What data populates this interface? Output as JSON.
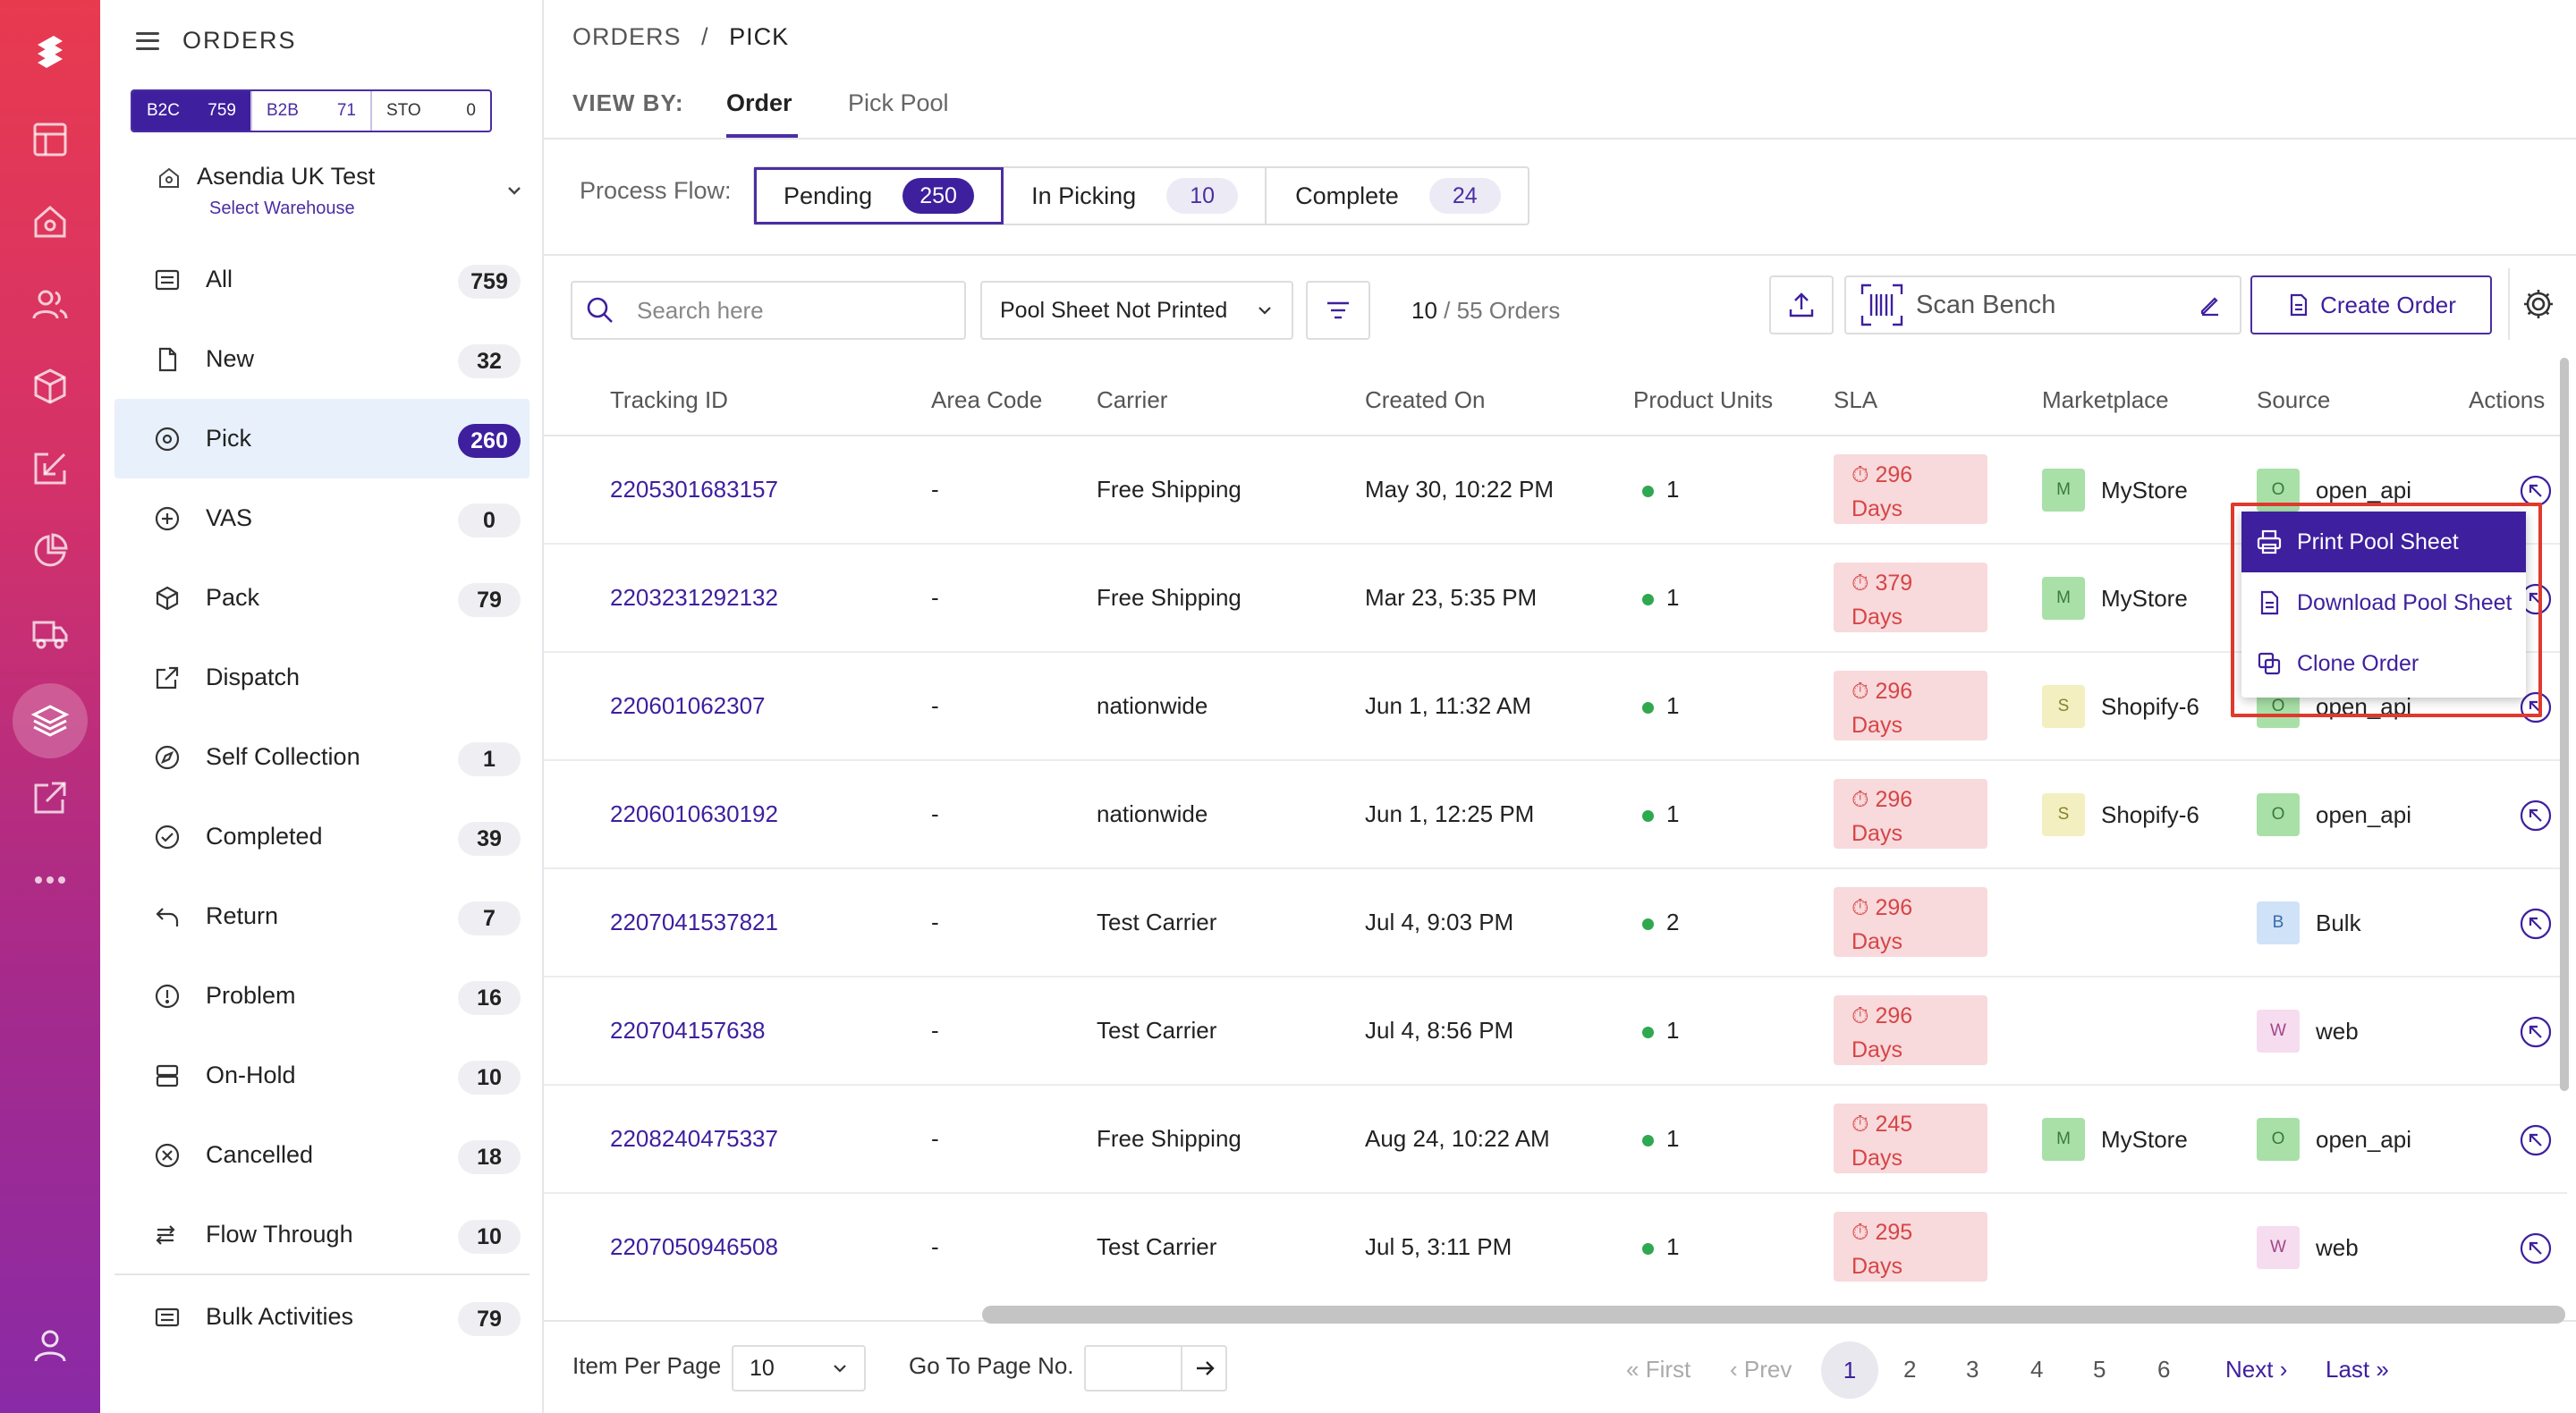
{
  "rail": {
    "icons": [
      "logo-icon",
      "dashboard-icon",
      "home-icon",
      "users-icon",
      "box-icon",
      "inbound-icon",
      "analytics-icon",
      "truck-icon",
      "orders-layers-icon",
      "outbound-icon",
      "more-icon",
      "profile-icon"
    ],
    "accent": "#e83a4f"
  },
  "sidebar": {
    "title": "ORDERS",
    "segments": [
      {
        "label": "B2C",
        "count": "759"
      },
      {
        "label": "B2B",
        "count": "71"
      },
      {
        "label": "STO",
        "count": "0"
      }
    ],
    "warehouse": {
      "name": "Asendia UK Test",
      "sub": "Select Warehouse"
    },
    "items": [
      {
        "label": "All",
        "count": "759",
        "icon": "list-icon"
      },
      {
        "label": "New",
        "count": "32",
        "icon": "file-icon"
      },
      {
        "label": "Pick",
        "count": "260",
        "icon": "pick-icon"
      },
      {
        "label": "VAS",
        "count": "0",
        "icon": "plus-circle-icon"
      },
      {
        "label": "Pack",
        "count": "79",
        "icon": "package-icon"
      },
      {
        "label": "Dispatch",
        "count": "",
        "icon": "external-link-icon"
      },
      {
        "label": "Self Collection",
        "count": "1",
        "icon": "compass-icon"
      },
      {
        "label": "Completed",
        "count": "39",
        "icon": "check-circle-icon"
      },
      {
        "label": "Return",
        "count": "7",
        "icon": "return-icon"
      },
      {
        "label": "Problem",
        "count": "16",
        "icon": "alert-circle-icon"
      },
      {
        "label": "On-Hold",
        "count": "10",
        "icon": "hold-icon"
      },
      {
        "label": "Cancelled",
        "count": "18",
        "icon": "x-circle-icon"
      },
      {
        "label": "Flow Through",
        "count": "10",
        "icon": "flow-icon"
      }
    ],
    "bulk": {
      "label": "Bulk Activities",
      "count": "79"
    }
  },
  "breadcrumb": {
    "root": "ORDERS",
    "sep": "/",
    "current": "PICK"
  },
  "viewby": {
    "label": "VIEW BY:",
    "tabs": [
      "Order",
      "Pick Pool"
    ]
  },
  "process_flow": {
    "label": "Process Flow:",
    "items": [
      {
        "label": "Pending",
        "count": "250"
      },
      {
        "label": "In Picking",
        "count": "10"
      },
      {
        "label": "Complete",
        "count": "24"
      }
    ]
  },
  "toolbar": {
    "search_placeholder": "Search here",
    "filter_value": "Pool Sheet Not Printed",
    "count_current": "10",
    "count_total": "/ 55 Orders",
    "scan_label": "Scan Bench",
    "create_label": "Create Order"
  },
  "table": {
    "headers": [
      "Tracking ID",
      "Area Code",
      "Carrier",
      "Created On",
      "Product Units",
      "SLA",
      "Marketplace",
      "Source",
      "Actions"
    ],
    "rows": [
      {
        "id": "2205301683157",
        "area": "-",
        "carrier": "Free Shipping",
        "created": "May 30, 10:22 PM",
        "units": "1",
        "sla_num": "296",
        "sla_unit": "Days",
        "mp_letter": "M",
        "mp": "MyStore",
        "src_letter": "O",
        "src": "open_api"
      },
      {
        "id": "2203231292132",
        "area": "-",
        "carrier": "Free Shipping",
        "created": "Mar 23, 5:35 PM",
        "units": "1",
        "sla_num": "379",
        "sla_unit": "Days",
        "mp_letter": "M",
        "mp": "MyStore",
        "src_letter": "",
        "src": ""
      },
      {
        "id": "220601062307",
        "area": "-",
        "carrier": "nationwide",
        "created": "Jun 1, 11:32 AM",
        "units": "1",
        "sla_num": "296",
        "sla_unit": "Days",
        "mp_letter": "S",
        "mp": "Shopify-6",
        "src_letter": "O",
        "src": "open_api"
      },
      {
        "id": "2206010630192",
        "area": "-",
        "carrier": "nationwide",
        "created": "Jun 1, 12:25 PM",
        "units": "1",
        "sla_num": "296",
        "sla_unit": "Days",
        "mp_letter": "S",
        "mp": "Shopify-6",
        "src_letter": "O",
        "src": "open_api"
      },
      {
        "id": "2207041537821",
        "area": "-",
        "carrier": "Test Carrier",
        "created": "Jul 4, 9:03 PM",
        "units": "2",
        "sla_num": "296",
        "sla_unit": "Days",
        "mp_letter": "",
        "mp": "",
        "src_letter": "B",
        "src": "Bulk"
      },
      {
        "id": "220704157638",
        "area": "-",
        "carrier": "Test Carrier",
        "created": "Jul 4, 8:56 PM",
        "units": "1",
        "sla_num": "296",
        "sla_unit": "Days",
        "mp_letter": "",
        "mp": "",
        "src_letter": "W",
        "src": "web"
      },
      {
        "id": "2208240475337",
        "area": "-",
        "carrier": "Free Shipping",
        "created": "Aug 24, 10:22 AM",
        "units": "1",
        "sla_num": "245",
        "sla_unit": "Days",
        "mp_letter": "M",
        "mp": "MyStore",
        "src_letter": "O",
        "src": "open_api"
      },
      {
        "id": "2207050946508",
        "area": "-",
        "carrier": "Test Carrier",
        "created": "Jul 5, 3:11 PM",
        "units": "1",
        "sla_num": "295",
        "sla_unit": "Days",
        "mp_letter": "",
        "mp": "",
        "src_letter": "W",
        "src": "web"
      }
    ]
  },
  "menu": {
    "items": [
      "Print Pool Sheet",
      "Download Pool Sheet",
      "Clone Order"
    ]
  },
  "footer": {
    "ipp_label": "Item Per Page",
    "ipp_value": "10",
    "goto_label": "Go To Page No.",
    "first": "First",
    "prev": "Prev",
    "pages": [
      "1",
      "2",
      "3",
      "4",
      "5",
      "6"
    ],
    "next": "Next",
    "last": "Last"
  }
}
